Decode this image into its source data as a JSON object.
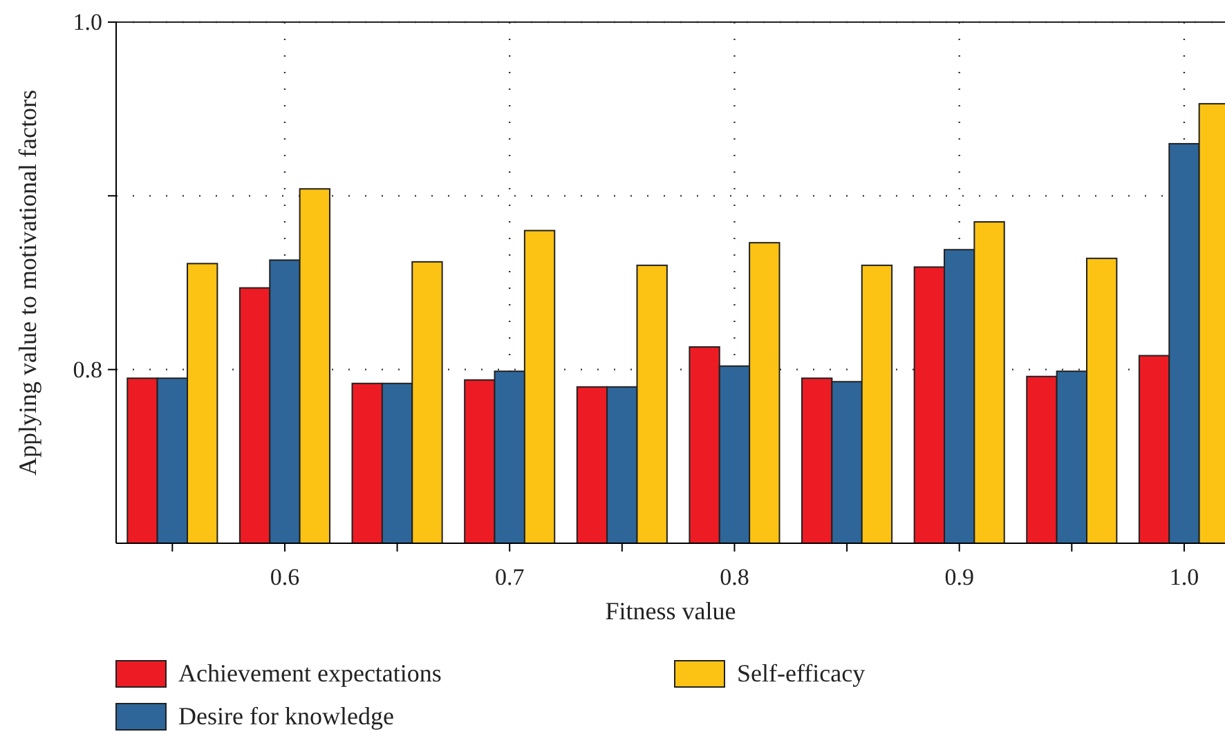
{
  "chart_data": {
    "type": "bar",
    "xlabel": "Fitness value",
    "ylabel": "Applying value to motivational factors",
    "x": [
      0.55,
      0.6,
      0.65,
      0.7,
      0.75,
      0.8,
      0.85,
      0.9,
      0.95,
      1.0
    ],
    "series": [
      {
        "name": "Achievement expectations",
        "color": "#ed1c24",
        "values": [
          0.795,
          0.847,
          0.792,
          0.794,
          0.79,
          0.813,
          0.795,
          0.859,
          0.796,
          0.808
        ]
      },
      {
        "name": "Desire for knowledge",
        "color": "#2e6699",
        "values": [
          0.795,
          0.863,
          0.792,
          0.799,
          0.79,
          0.802,
          0.793,
          0.869,
          0.799,
          0.93
        ]
      },
      {
        "name": "Self-efficacy",
        "color": "#fcc314",
        "values": [
          0.861,
          0.904,
          0.862,
          0.88,
          0.86,
          0.873,
          0.86,
          0.885,
          0.864,
          0.953
        ]
      }
    ],
    "xlim": [
      0.525,
      1.02
    ],
    "ylim": [
      0.7,
      1.0
    ],
    "xticks": [
      {
        "value": 0.55,
        "label": null
      },
      0.6,
      {
        "value": 0.65,
        "label": null
      },
      0.7,
      {
        "value": 0.75,
        "label": null
      },
      0.8,
      {
        "value": 0.85,
        "label": null
      },
      0.9,
      {
        "value": 0.95,
        "label": null
      },
      {
        "value": 1.0,
        "label": "1.0"
      }
    ],
    "yticks": [
      0.8,
      {
        "value": 0.9,
        "label": null
      },
      {
        "value": 1.0,
        "label": "1.0"
      }
    ],
    "grid": true,
    "legend": "bottom"
  }
}
